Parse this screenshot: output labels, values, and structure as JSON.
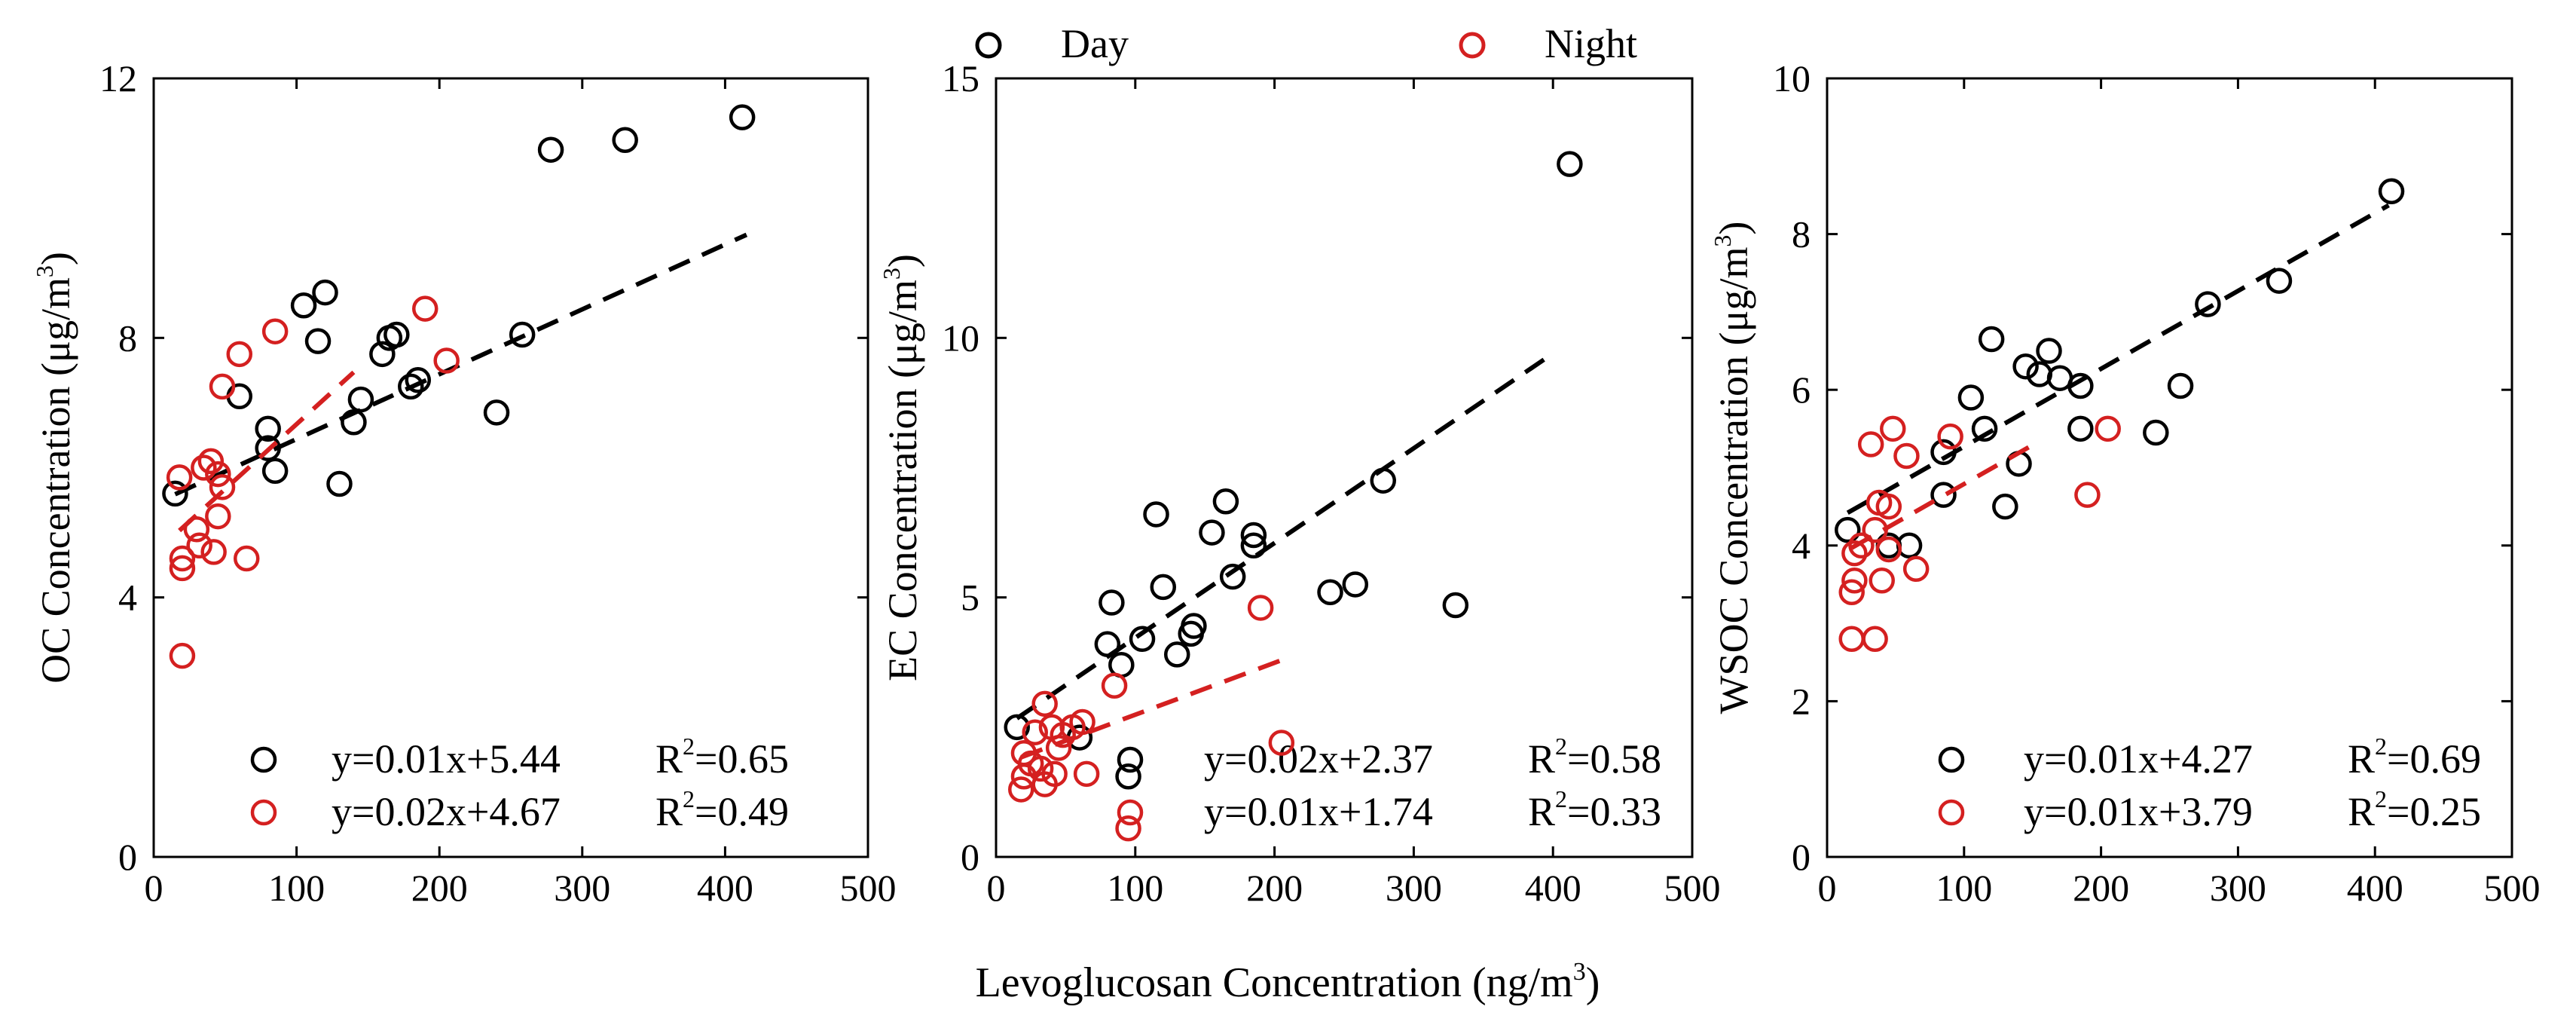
{
  "figure": {
    "xlabel_main": "Levoglucosan Concentration (ng/m",
    "xlabel_sup": "3",
    "xlabel_close": ")",
    "legend_day": "Day",
    "legend_night": "Night"
  },
  "colors": {
    "day": "#000000",
    "night": "#d42020"
  },
  "chart_data": [
    {
      "type": "scatter",
      "ylabel": "OC Concentration (μg/m³)",
      "ylabel_main": "OC Concentration (μg/m",
      "ylabel_sup": "3",
      "ylabel_close": ")",
      "xlim": [
        0,
        500
      ],
      "ylim": [
        0,
        12
      ],
      "xticks": [
        0,
        100,
        200,
        300,
        400,
        500
      ],
      "yticks": [
        0,
        4,
        8,
        12
      ],
      "series": [
        {
          "name": "Day",
          "points": [
            [
              15,
              5.6
            ],
            [
              60,
              7.1
            ],
            [
              80,
              6.6
            ],
            [
              80,
              6.3
            ],
            [
              85,
              5.95
            ],
            [
              105,
              8.5
            ],
            [
              115,
              7.95
            ],
            [
              120,
              8.7
            ],
            [
              130,
              5.75
            ],
            [
              140,
              6.7
            ],
            [
              145,
              7.05
            ],
            [
              160,
              7.75
            ],
            [
              165,
              8.0
            ],
            [
              170,
              8.05
            ],
            [
              180,
              7.25
            ],
            [
              185,
              7.35
            ],
            [
              240,
              6.85
            ],
            [
              258,
              8.05
            ],
            [
              278,
              10.9
            ],
            [
              330,
              11.05
            ],
            [
              412,
              11.4
            ]
          ],
          "fit": {
            "x": [
              15,
              415
            ],
            "y": [
              5.59,
              9.59
            ]
          },
          "equation": "y=0.01x+5.44",
          "r2_label": "R",
          "r2_sup": "2",
          "r2_value": "=0.65"
        },
        {
          "name": "Night",
          "points": [
            [
              18,
              5.85
            ],
            [
              20,
              4.6
            ],
            [
              20,
              4.45
            ],
            [
              20,
              3.1
            ],
            [
              30,
              5.05
            ],
            [
              32,
              4.8
            ],
            [
              35,
              6.0
            ],
            [
              40,
              6.1
            ],
            [
              42,
              4.7
            ],
            [
              45,
              5.9
            ],
            [
              45,
              5.25
            ],
            [
              48,
              5.7
            ],
            [
              48,
              7.25
            ],
            [
              60,
              7.75
            ],
            [
              65,
              4.6
            ],
            [
              85,
              8.1
            ],
            [
              190,
              8.45
            ],
            [
              205,
              7.65
            ]
          ],
          "fit": {
            "x": [
              18,
              140
            ],
            "y": [
              5.03,
              7.47
            ]
          },
          "equation": "y=0.02x+4.67",
          "r2_label": "R",
          "r2_sup": "2",
          "r2_value": "=0.49"
        }
      ]
    },
    {
      "type": "scatter",
      "ylabel": "EC Concentration (μg/m³)",
      "ylabel_main": "EC Concentration (μg/m",
      "ylabel_sup": "3",
      "ylabel_close": ")",
      "xlim": [
        0,
        500
      ],
      "ylim": [
        0,
        15
      ],
      "xticks": [
        0,
        100,
        200,
        300,
        400,
        500
      ],
      "yticks": [
        0,
        5,
        10,
        15
      ],
      "series": [
        {
          "name": "Day",
          "points": [
            [
              15,
              2.5
            ],
            [
              60,
              2.3
            ],
            [
              80,
              4.1
            ],
            [
              83,
              4.9
            ],
            [
              90,
              3.7
            ],
            [
              95,
              1.55
            ],
            [
              105,
              4.2
            ],
            [
              115,
              6.6
            ],
            [
              120,
              5.2
            ],
            [
              130,
              3.9
            ],
            [
              140,
              4.3
            ],
            [
              142,
              4.45
            ],
            [
              155,
              6.25
            ],
            [
              165,
              6.85
            ],
            [
              170,
              5.4
            ],
            [
              185,
              6.0
            ],
            [
              185,
              6.2
            ],
            [
              240,
              5.1
            ],
            [
              258,
              5.25
            ],
            [
              278,
              7.25
            ],
            [
              330,
              4.85
            ],
            [
              412,
              13.35
            ]
          ],
          "fit": {
            "x": [
              15,
              400
            ],
            "y": [
              2.67,
              9.7
            ]
          },
          "equation": "y=0.02x+2.37",
          "r2_label": "R",
          "r2_sup": "2",
          "r2_value": "=0.58"
        },
        {
          "name": "Night",
          "points": [
            [
              18,
              1.3
            ],
            [
              20,
              2.0
            ],
            [
              20,
              1.55
            ],
            [
              25,
              1.8
            ],
            [
              28,
              2.4
            ],
            [
              32,
              1.7
            ],
            [
              35,
              2.95
            ],
            [
              35,
              1.4
            ],
            [
              40,
              2.5
            ],
            [
              42,
              1.6
            ],
            [
              45,
              2.1
            ],
            [
              48,
              2.35
            ],
            [
              55,
              2.5
            ],
            [
              62,
              2.6
            ],
            [
              65,
              1.6
            ],
            [
              85,
              3.3
            ],
            [
              95,
              0.55
            ],
            [
              190,
              4.8
            ],
            [
              205,
              2.2
            ]
          ],
          "fit": {
            "x": [
              18,
              205
            ],
            "y": [
              1.92,
              3.79
            ]
          },
          "equation": "y=0.01x+1.74",
          "r2_label": "R",
          "r2_sup": "2",
          "r2_value": "=0.33"
        }
      ]
    },
    {
      "type": "scatter",
      "ylabel": "WSOC Concentration (μg/m³)",
      "ylabel_main": "WSOC Concentration (μg/m",
      "ylabel_sup": "3",
      "ylabel_close": ")",
      "xlim": [
        0,
        500
      ],
      "ylim": [
        0,
        10
      ],
      "xticks": [
        0,
        100,
        200,
        300,
        400,
        500
      ],
      "yticks": [
        0,
        2,
        4,
        6,
        8,
        10
      ],
      "series": [
        {
          "name": "Day",
          "points": [
            [
              15,
              4.2
            ],
            [
              45,
              4.0
            ],
            [
              60,
              4.0
            ],
            [
              85,
              5.2
            ],
            [
              85,
              4.65
            ],
            [
              105,
              5.9
            ],
            [
              115,
              5.5
            ],
            [
              120,
              6.65
            ],
            [
              130,
              4.5
            ],
            [
              140,
              5.05
            ],
            [
              145,
              6.3
            ],
            [
              155,
              6.2
            ],
            [
              162,
              6.5
            ],
            [
              170,
              6.15
            ],
            [
              185,
              6.05
            ],
            [
              185,
              5.5
            ],
            [
              240,
              5.45
            ],
            [
              258,
              6.05
            ],
            [
              278,
              7.1
            ],
            [
              330,
              7.4
            ],
            [
              412,
              8.55
            ]
          ],
          "fit": {
            "x": [
              15,
              410
            ],
            "y": [
              4.42,
              8.37
            ]
          },
          "equation": "y=0.01x+4.27",
          "r2_label": "R",
          "r2_sup": "2",
          "r2_value": "=0.69"
        },
        {
          "name": "Night",
          "points": [
            [
              18,
              3.4
            ],
            [
              18,
              2.8
            ],
            [
              20,
              3.55
            ],
            [
              20,
              3.9
            ],
            [
              25,
              4.0
            ],
            [
              32,
              5.3
            ],
            [
              35,
              2.8
            ],
            [
              35,
              4.2
            ],
            [
              38,
              4.55
            ],
            [
              40,
              3.55
            ],
            [
              45,
              3.95
            ],
            [
              45,
              4.5
            ],
            [
              48,
              5.5
            ],
            [
              58,
              5.15
            ],
            [
              65,
              3.7
            ],
            [
              90,
              5.4
            ],
            [
              190,
              4.65
            ],
            [
              205,
              5.5
            ]
          ],
          "fit": {
            "x": [
              18,
              150
            ],
            "y": [
              3.97,
              5.29
            ]
          },
          "equation": "y=0.01x+3.79",
          "r2_label": "R",
          "r2_sup": "2",
          "r2_value": "=0.25"
        }
      ]
    }
  ]
}
